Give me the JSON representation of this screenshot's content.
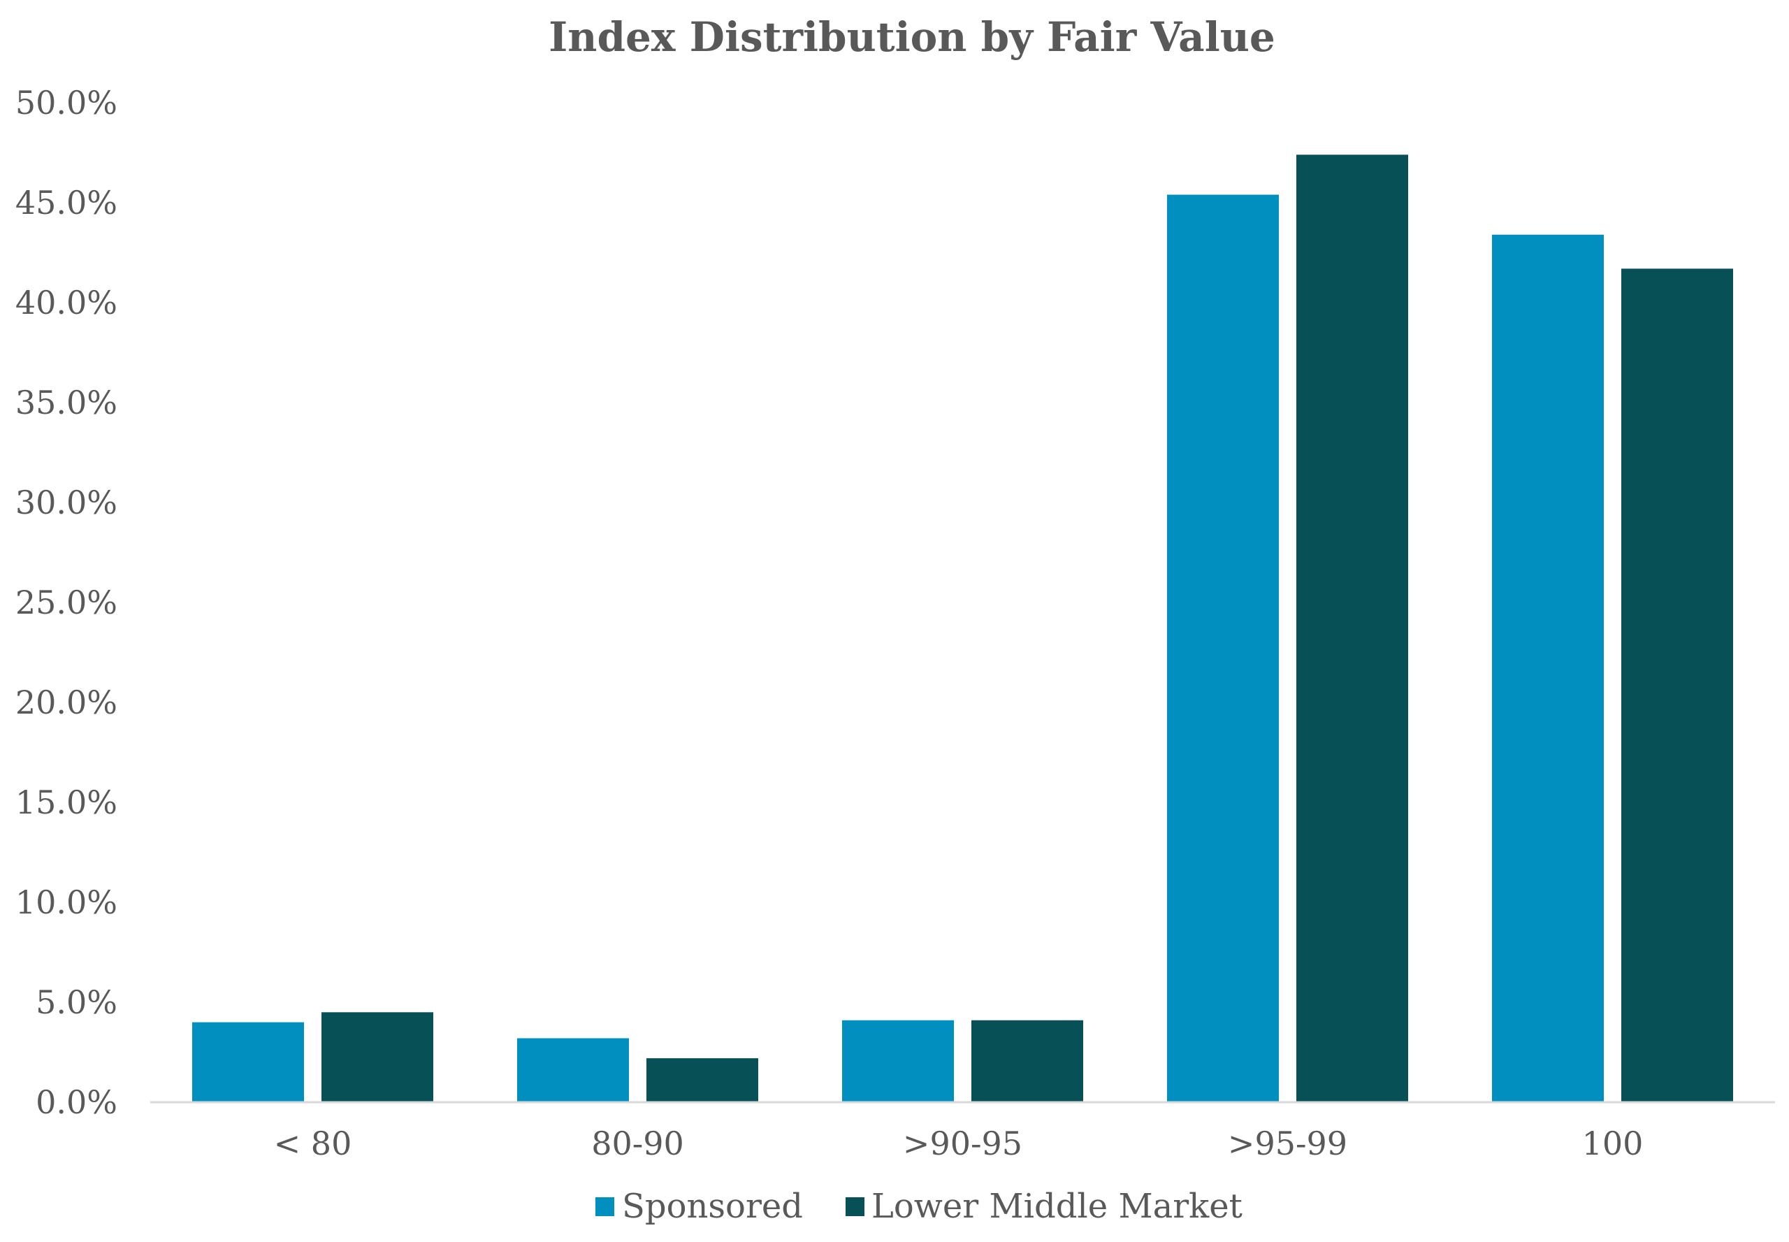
{
  "chart_data": {
    "type": "bar",
    "title": "Index Distribution by Fair Value",
    "xlabel": "",
    "ylabel": "",
    "categories": [
      "< 80",
      "80-90",
      ">90-95",
      ">95-99",
      "100"
    ],
    "series": [
      {
        "name": "Sponsored",
        "values": [
          4.0,
          3.2,
          4.1,
          45.4,
          43.4
        ],
        "color": "#008FBE"
      },
      {
        "name": "Lower Middle Market",
        "values": [
          4.5,
          2.2,
          4.1,
          47.4,
          41.7
        ],
        "color": "#065056"
      }
    ],
    "ylim": [
      0,
      50
    ],
    "yticks": [
      0,
      5,
      10,
      15,
      20,
      25,
      30,
      35,
      40,
      45,
      50
    ],
    "ytick_labels": [
      "0.0%",
      "5.0%",
      "10.0%",
      "15.0%",
      "20.0%",
      "25.0%",
      "30.0%",
      "35.0%",
      "40.0%",
      "45.0%",
      "50.0%"
    ],
    "grid": false,
    "legend_position": "bottom",
    "axis_color": "#D9D9D9",
    "text_color": "#595959"
  }
}
